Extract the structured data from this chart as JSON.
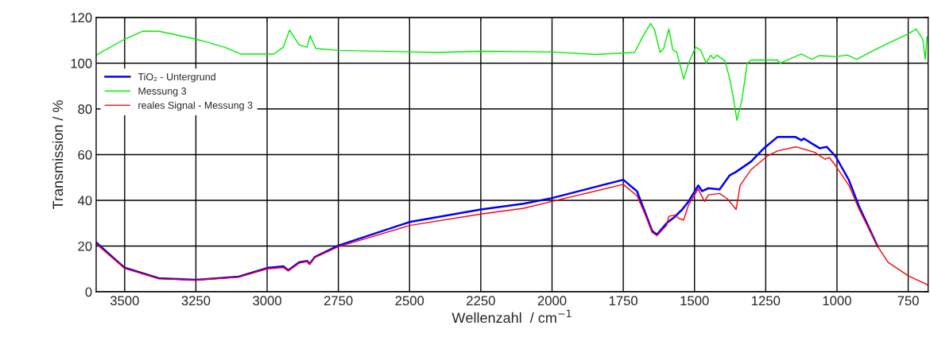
{
  "chart_data": {
    "type": "line",
    "xlabel": "Wellenzahl  / cm$^{−1}$",
    "ylabel": "Transmission / %",
    "xlim": [
      3600,
      680
    ],
    "ylim": [
      0,
      120
    ],
    "xticks": [
      3500,
      3250,
      3000,
      2750,
      2500,
      2250,
      2000,
      1750,
      1500,
      1250,
      1000,
      750
    ],
    "yticks": [
      0,
      20,
      40,
      60,
      80,
      100,
      120
    ],
    "grid": true,
    "legend": "top left",
    "line_style": "solid",
    "marker": "none",
    "series": [
      {
        "name": "TiO₂ - Untergrund",
        "color": "#0000ff",
        "x": [
          3600,
          3500,
          3380,
          3250,
          3100,
          3000,
          2943,
          2926,
          2888,
          2860,
          2851,
          2832,
          2750,
          2500,
          2250,
          2100,
          2000,
          1750,
          1702,
          1674,
          1649,
          1632,
          1598,
          1571,
          1543,
          1521,
          1487,
          1473,
          1451,
          1412,
          1376,
          1356,
          1301,
          1256,
          1209,
          1145,
          1125,
          1116,
          1061,
          1036,
          1005,
          958,
          922,
          894,
          857
        ],
        "values": [
          21.6,
          10.5,
          5.9,
          5.2,
          6.6,
          10.4,
          11.1,
          9.4,
          12.9,
          13.5,
          12.2,
          15.3,
          20.2,
          30.5,
          36,
          38.5,
          41,
          49,
          44,
          35,
          26.7,
          25,
          30,
          32.6,
          36,
          39.5,
          46.5,
          44,
          45.3,
          44.8,
          51,
          52.3,
          57,
          62.8,
          67.7,
          67.7,
          66.3,
          67,
          62.8,
          63.4,
          59.3,
          48.8,
          37.2,
          29.7,
          19.8
        ]
      },
      {
        "name": "Messung 3",
        "color": "#00ee00",
        "x": [
          3600,
          3500,
          3436,
          3380,
          3250,
          3149,
          3093,
          2977,
          2943,
          2921,
          2888,
          2860,
          2849,
          2829,
          2750,
          2406,
          2250,
          2000,
          1849,
          1750,
          1710,
          1682,
          1654,
          1640,
          1621,
          1608,
          1590,
          1576,
          1562,
          1538,
          1521,
          1496,
          1479,
          1459,
          1443,
          1434,
          1421,
          1393,
          1376,
          1362,
          1351,
          1334,
          1315,
          1301,
          1209,
          1199,
          1125,
          1089,
          1061,
          1005,
          963,
          930,
          885,
          820,
          750,
          722,
          699,
          690,
          684
        ],
        "values": [
          103.5,
          110.5,
          114,
          114,
          110.5,
          107,
          104,
          104,
          107,
          114.5,
          108,
          107,
          112,
          106.4,
          105.6,
          104.7,
          105.2,
          104.9,
          103.8,
          104.4,
          104.7,
          111.6,
          117.4,
          114.5,
          104.7,
          106.4,
          115,
          105.8,
          104.7,
          93,
          100,
          107,
          105.8,
          100,
          103.5,
          102,
          103.5,
          101,
          93,
          83.7,
          75,
          83.7,
          100,
          101.4,
          101.4,
          100,
          104,
          101.7,
          103.3,
          102.9,
          103.5,
          101.7,
          104.7,
          108.7,
          112.8,
          115,
          110.5,
          101.7,
          111.6
        ]
      },
      {
        "name": "reales Signal - Messung 3",
        "color": "#ff0000",
        "x": [
          3600,
          3500,
          3380,
          3250,
          3100,
          3000,
          2943,
          2926,
          2888,
          2860,
          2851,
          2832,
          2750,
          2500,
          2250,
          2100,
          2000,
          1750,
          1702,
          1674,
          1649,
          1632,
          1598,
          1590,
          1571,
          1553,
          1538,
          1521,
          1487,
          1465,
          1451,
          1412,
          1385,
          1354,
          1340,
          1301,
          1245,
          1209,
          1145,
          1078,
          1042,
          1027,
          1005,
          958,
          922,
          894,
          857,
          820,
          750,
          680
        ],
        "values": [
          21,
          10.2,
          5.7,
          5.1,
          6.4,
          10,
          10.6,
          9.1,
          12.5,
          13.2,
          12,
          15,
          19.7,
          29,
          34,
          36.5,
          39.5,
          47,
          42,
          34,
          26,
          24.5,
          29,
          33,
          33.5,
          32,
          31.4,
          38,
          45,
          39.5,
          42.4,
          43,
          40.7,
          36,
          46.5,
          53.5,
          59.3,
          61.6,
          63.4,
          61,
          58,
          58.7,
          55.2,
          46.5,
          36,
          29,
          19.8,
          12.8,
          7,
          2.9
        ]
      }
    ]
  }
}
